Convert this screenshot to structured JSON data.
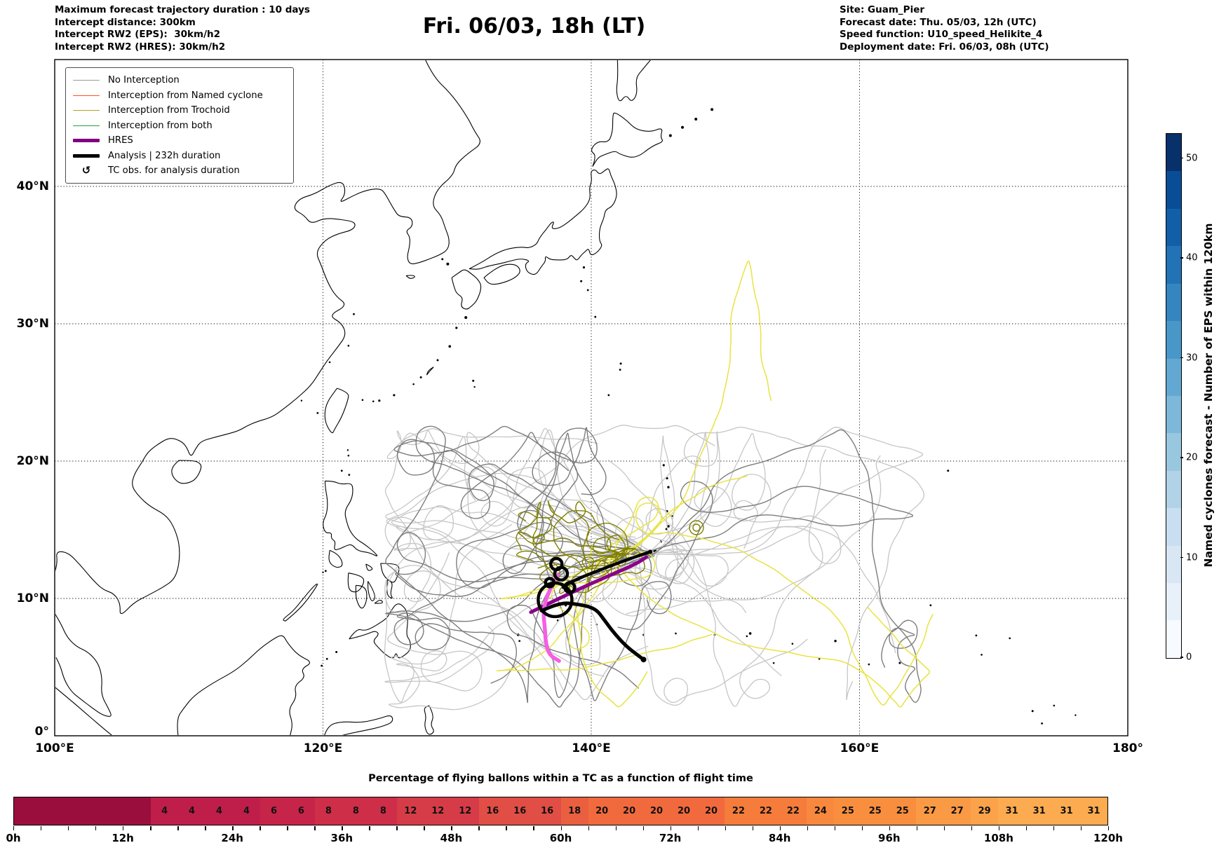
{
  "header": {
    "left": "Maximum forecast trajectory duration : 10 days\nIntercept distance: 300km\nIntercept RW2 (EPS):  30km/h2\nIntercept RW2 (HRES): 30km/h2",
    "title": "Fri. 06/03, 18h (LT)",
    "right": "Site: Guam_Pier\nForecast date: Thu. 05/03, 12h (UTC)\nSpeed function: U10_speed_Helikite_4\nDeployment date: Fri. 06/03, 08h (UTC)"
  },
  "legend": {
    "items": [
      {
        "label": "No Interception",
        "color": "#9a9a9a",
        "lw": 1.8,
        "type": "line"
      },
      {
        "label": "Interception from Named cyclone",
        "color": "#ff4f22",
        "lw": 1.8,
        "type": "line"
      },
      {
        "label": "Interception from Trochoid",
        "color": "#b1a226",
        "lw": 1.8,
        "type": "line"
      },
      {
        "label": "Interception from both",
        "color": "#2f9e3c",
        "lw": 1.8,
        "type": "line"
      },
      {
        "label": "HRES",
        "color": "#800080",
        "lw": 5,
        "type": "line"
      },
      {
        "label": "Analysis | 232h duration",
        "color": "#000000",
        "lw": 5,
        "type": "line"
      },
      {
        "label": "TC obs. for analysis duration",
        "glyph": "↺",
        "type": "glyph"
      }
    ]
  },
  "chart_data": {
    "type": "map",
    "map": {
      "extent": {
        "lon": [
          100,
          180
        ],
        "lat": [
          0,
          49.2
        ]
      },
      "x_ticks": [
        {
          "label": "100°E",
          "lon": 100
        },
        {
          "label": "120°E",
          "lon": 120
        },
        {
          "label": "140°E",
          "lon": 140
        },
        {
          "label": "160°E",
          "lon": 160
        },
        {
          "label": "180°",
          "lon": 180
        }
      ],
      "y_ticks": [
        {
          "label": "0°",
          "lat": 0
        },
        {
          "label": "10°N",
          "lat": 10
        },
        {
          "label": "20°N",
          "lat": 20
        },
        {
          "label": "30°N",
          "lat": 30
        },
        {
          "label": "40°N",
          "lat": 40
        }
      ]
    },
    "ensemble": {
      "origin_lonlat": [
        144.65,
        13.35
      ],
      "seed": 20240603,
      "classes": [
        {
          "name": "no-interception-light",
          "color": "#c6c6c6",
          "width": 1.3,
          "count": 22,
          "kind": "gray"
        },
        {
          "name": "no-interception-dark",
          "color": "#7d7d7d",
          "width": 1.4,
          "count": 12,
          "kind": "gray"
        },
        {
          "name": "trochoid-yellow",
          "color": "#e8e342",
          "width": 1.5,
          "count": 6,
          "kind": "yellow"
        },
        {
          "name": "trochoid-olive",
          "color": "#7f7f00",
          "width": 1.4,
          "count": 8,
          "kind": "olive"
        }
      ]
    },
    "tracks": {
      "analysis": {
        "color": "#000000",
        "width": 4.4,
        "points": [
          [
            144.4,
            13.4
          ],
          [
            142.6,
            12.8
          ],
          [
            141.0,
            12.2
          ],
          [
            139.4,
            11.6
          ],
          [
            138.3,
            11.1
          ],
          [
            137.9,
            10.8
          ]
        ],
        "loops": [
          [
            137.3,
            9.9,
            24
          ],
          [
            137.75,
            11.8,
            9
          ],
          [
            137.4,
            12.5,
            8
          ],
          [
            138.4,
            10.8,
            7
          ],
          [
            136.9,
            11.15,
            6
          ]
        ],
        "exit": [
          [
            136.3,
            9.1
          ],
          [
            137.6,
            9.7
          ],
          [
            138.9,
            9.6
          ],
          [
            140.3,
            9.3
          ],
          [
            141.0,
            8.4
          ],
          [
            141.6,
            7.6
          ],
          [
            142.6,
            6.5
          ],
          [
            143.9,
            5.55
          ]
        ]
      },
      "hres_purple": {
        "color": "#8b008b",
        "width": 5,
        "points": [
          [
            135.5,
            9.0
          ],
          [
            137.6,
            10.0
          ],
          [
            139.8,
            11.0
          ],
          [
            141.9,
            11.9
          ],
          [
            143.3,
            12.5
          ],
          [
            144.1,
            13.0
          ]
        ]
      },
      "hres_magenta": {
        "color": "#f45fe2",
        "width": 5.5,
        "points": [
          [
            137.5,
            11.7
          ],
          [
            136.8,
            10.5
          ],
          [
            136.4,
            9.1
          ],
          [
            136.55,
            7.8
          ],
          [
            136.6,
            6.8
          ],
          [
            136.85,
            5.9
          ],
          [
            137.6,
            5.45
          ]
        ]
      }
    },
    "colorbar": {
      "label": "Named cyclones forecast - Number of EPS within 120km",
      "ticks": [
        0,
        10,
        20,
        30,
        40,
        50
      ],
      "vmax": 52.5,
      "colors_bottom_to_top": [
        "#f7fbff",
        "#e8f1fa",
        "#d9e7f5",
        "#c9def1",
        "#b2d2e8",
        "#99c7e0",
        "#7db8da",
        "#62a8d2",
        "#4997c9",
        "#3585c0",
        "#2272b6",
        "#135fa7",
        "#084d96",
        "#08306b"
      ]
    },
    "strip": {
      "title": "Percentage of flying ballons within a TC as a function of flight time",
      "hours_total": 120,
      "cell_hours": 3,
      "lead": {
        "hours": 15,
        "color": "#9a0e3d"
      },
      "values": [
        4,
        4,
        4,
        4,
        6,
        6,
        8,
        8,
        8,
        12,
        12,
        12,
        16,
        16,
        16,
        18,
        20,
        20,
        20,
        20,
        20,
        22,
        22,
        22,
        24,
        25,
        25,
        25,
        27,
        27,
        29,
        31,
        31,
        31,
        31
      ],
      "value_colors": {
        "4": "#bf1e4b",
        "6": "#c72449",
        "8": "#ce2e48",
        "12": "#d63c47",
        "16": "#e04e45",
        "18": "#ea5f40",
        "20": "#f16a3d",
        "22": "#f57c3b",
        "24": "#f8883d",
        "25": "#f98f3e",
        "27": "#fa9a44",
        "29": "#fba24a",
        "31": "#fcab50"
      },
      "time_labels": [
        "0h",
        "12h",
        "24h",
        "36h",
        "48h",
        "60h",
        "72h",
        "84h",
        "96h",
        "108h",
        "120h"
      ]
    }
  }
}
